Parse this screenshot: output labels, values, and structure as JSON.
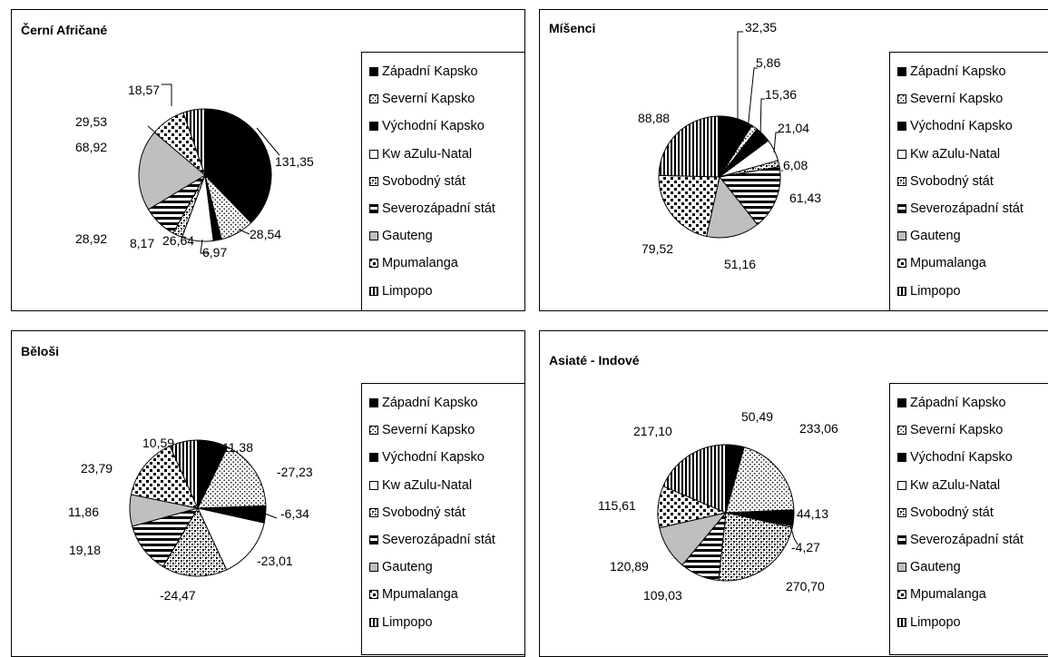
{
  "legend_items": [
    "Západní Kapsko",
    "Severní Kapsko",
    "Východní Kapsko",
    "Kw aZulu-Natal",
    "Svobodný stát",
    "Severozápadní stát",
    "Gauteng",
    "Mpumalanga",
    "Limpopo"
  ],
  "chart_data": [
    {
      "type": "pie",
      "title": "Černí Afričané",
      "categories": [
        "Západní Kapsko",
        "Severní Kapsko",
        "Východní Kapsko",
        "Kw aZulu-Natal",
        "Svobodný stát",
        "Severozápadní stát",
        "Gauteng",
        "Mpumalanga",
        "Limpopo"
      ],
      "values": [
        131.35,
        28.54,
        6.97,
        26.64,
        8.17,
        28.92,
        68.92,
        29.53,
        18.57
      ],
      "labels": [
        "131,35",
        "28,54",
        "6,97",
        "26,64",
        "8,17",
        "28,92",
        "68,92",
        "29,53",
        "18,57"
      ],
      "legend": "right"
    },
    {
      "type": "pie",
      "title": "Míšenci",
      "categories": [
        "Západní Kapsko",
        "Severní Kapsko",
        "Východní Kapsko",
        "Kw aZulu-Natal",
        "Svobodný stát",
        "Severozápadní stát",
        "Gauteng",
        "Mpumalanga",
        "Limpopo"
      ],
      "values": [
        32.35,
        5.86,
        15.36,
        21.04,
        6.08,
        61.43,
        51.16,
        79.52,
        88.88
      ],
      "labels": [
        "32,35",
        "5,86",
        "15,36",
        "21,04",
        "6,08",
        "61,43",
        "51,16",
        "79,52",
        "88,88"
      ],
      "legend": "right"
    },
    {
      "type": "pie",
      "title": "Běloši",
      "categories": [
        "Západní Kapsko",
        "Severní Kapsko",
        "Východní Kapsko",
        "Kw aZulu-Natal",
        "Svobodný stát",
        "Severozápadní stát",
        "Gauteng",
        "Mpumalanga",
        "Limpopo"
      ],
      "values": [
        11.38,
        -27.23,
        -6.34,
        -23.01,
        -24.47,
        19.18,
        11.86,
        23.79,
        10.59
      ],
      "labels": [
        "11,38",
        "-27,23",
        "-6,34",
        "-23,01",
        "-24,47",
        "19,18",
        "11,86",
        "23,79",
        "10,59"
      ],
      "legend": "right"
    },
    {
      "type": "pie",
      "title": "Asiaté - Indové",
      "categories": [
        "Západní Kapsko",
        "Severní Kapsko",
        "Východní Kapsko",
        "Kw aZulu-Natal",
        "Svobodný stát",
        "Severozápadní stát",
        "Gauteng",
        "Mpumalanga",
        "Limpopo"
      ],
      "values": [
        50.49,
        233.06,
        44.13,
        -4.27,
        270.7,
        109.03,
        120.89,
        115.61,
        217.1
      ],
      "labels": [
        "50,49",
        "233,06",
        "44,13",
        "-4,27",
        "270,70",
        "109,03",
        "120,89",
        "115,61",
        "217,10"
      ],
      "legend": "right"
    }
  ]
}
